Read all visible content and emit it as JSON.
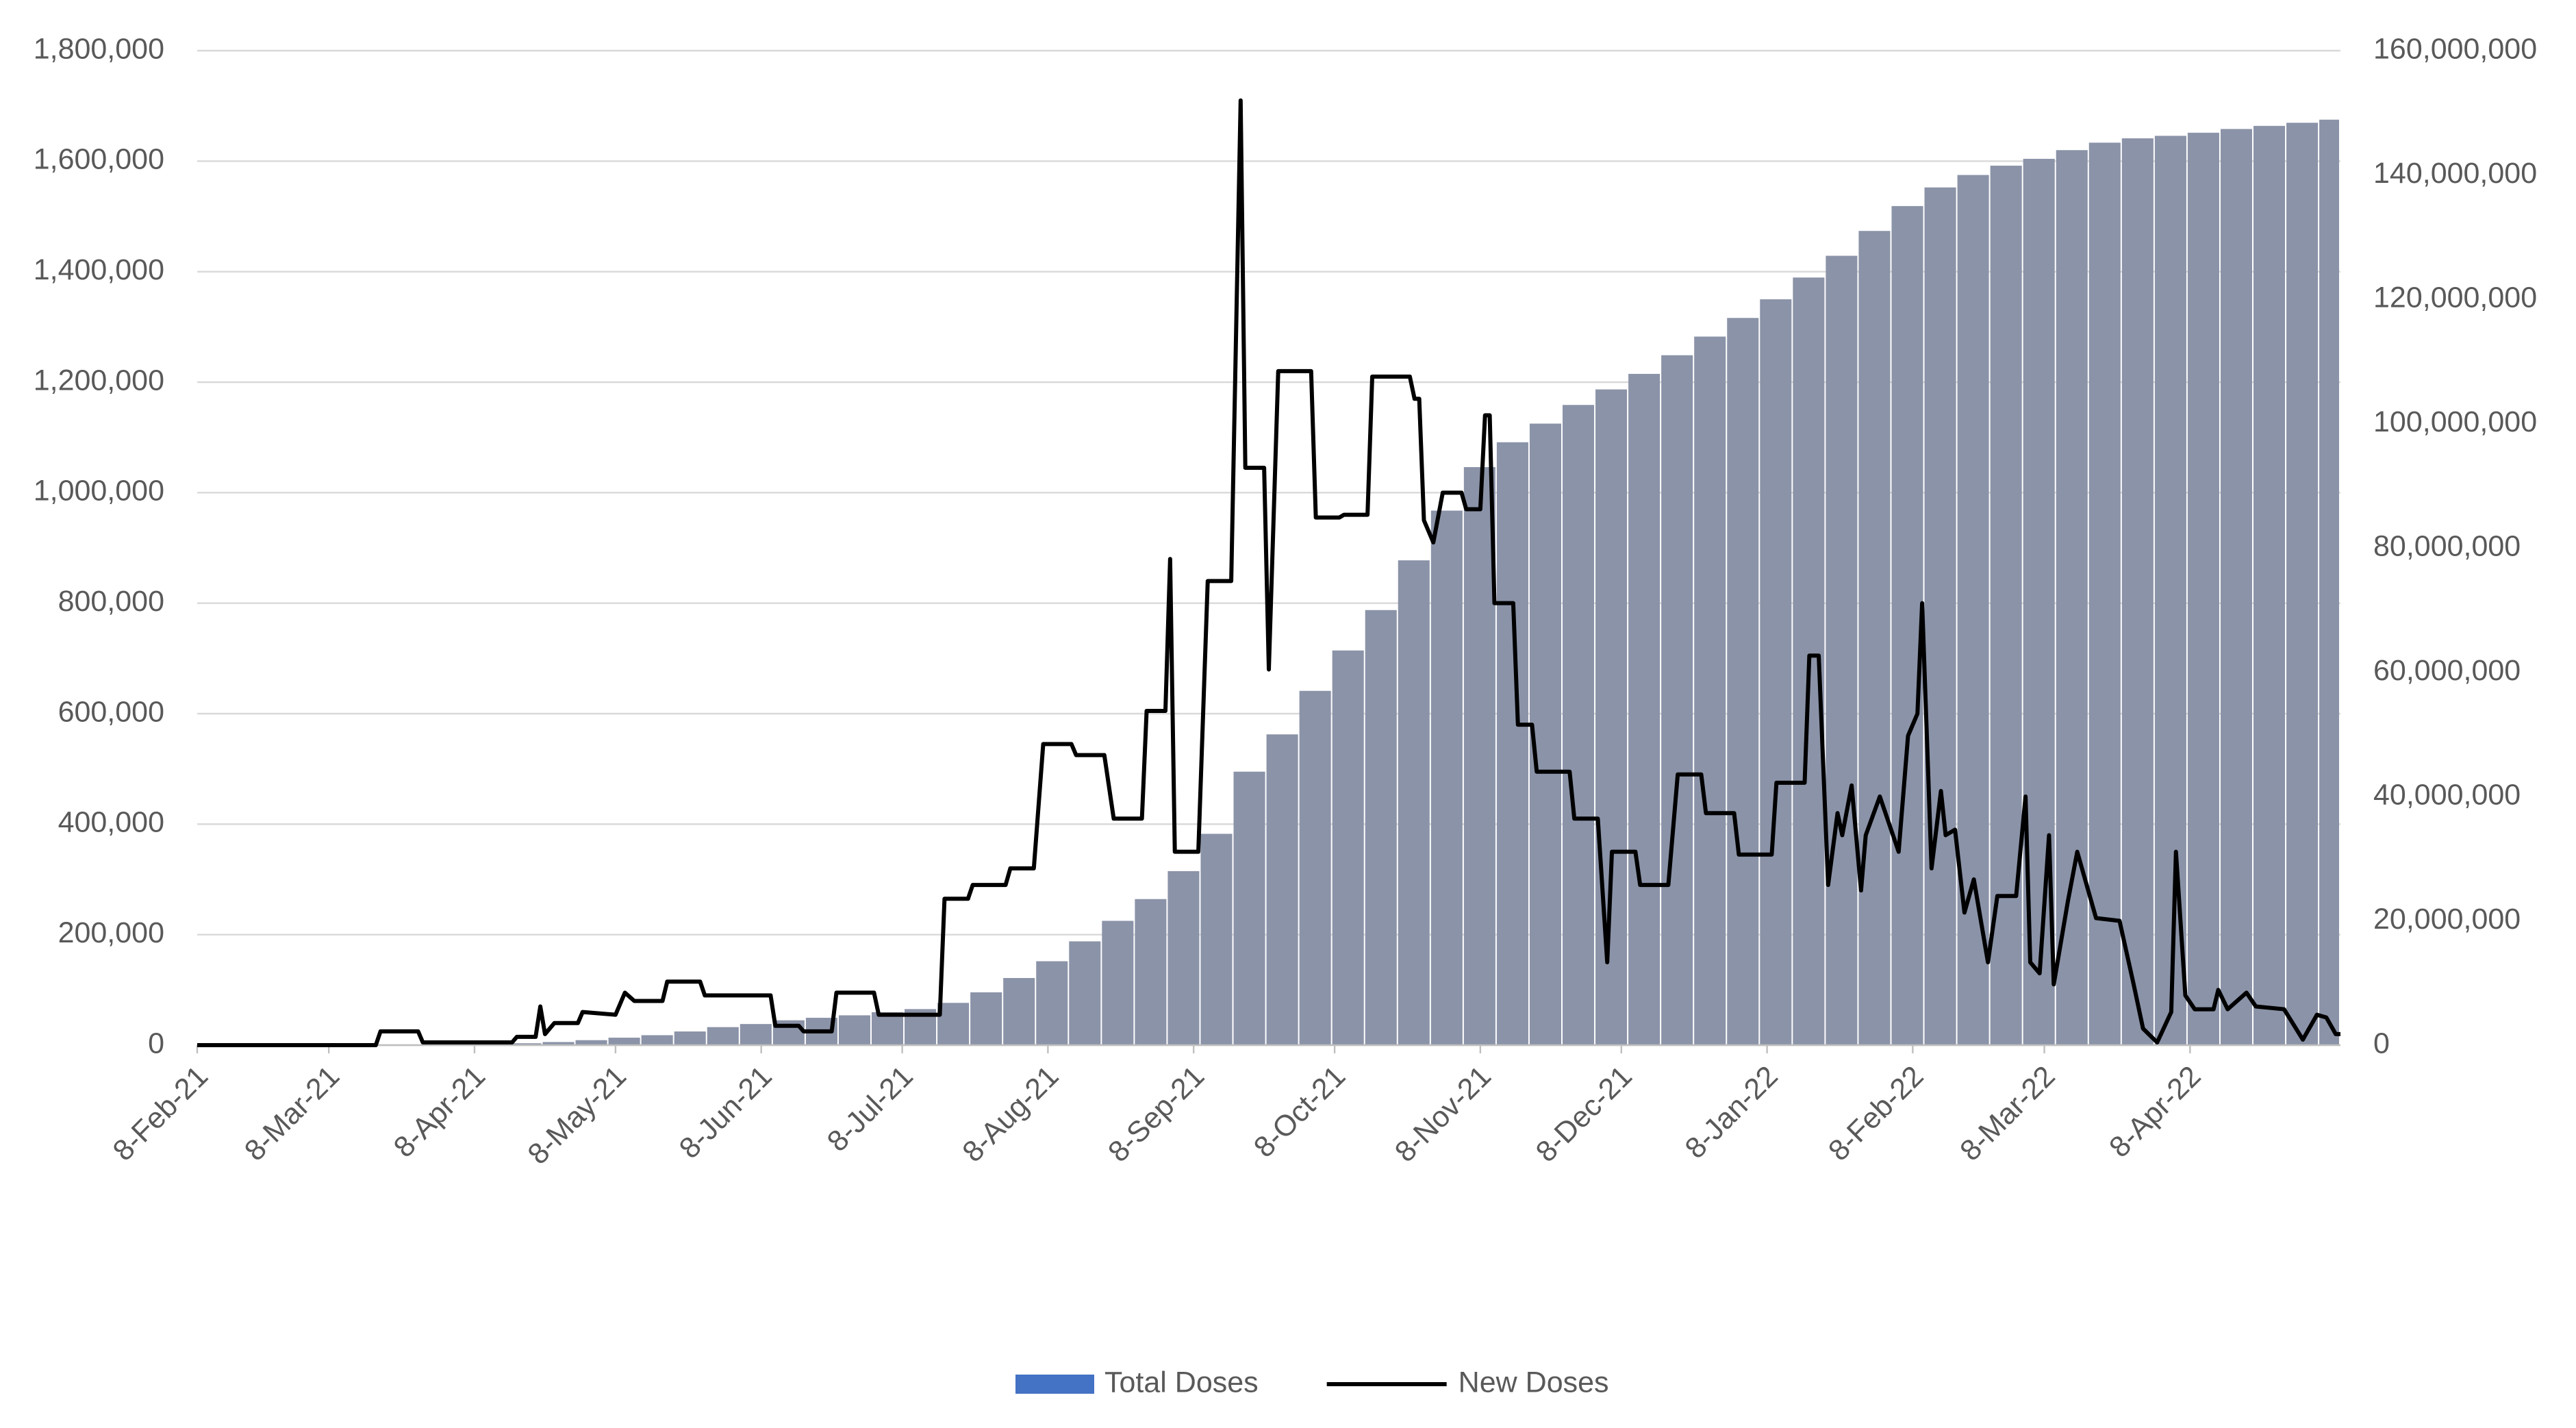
{
  "chart_data": {
    "type": "bar-line",
    "xlim": [
      "2021-02-08",
      "2022-05-10"
    ],
    "xticks": [
      {
        "value": "2021-02-08",
        "label": "8-Feb-21"
      },
      {
        "value": "2021-03-08",
        "label": "8-Mar-21"
      },
      {
        "value": "2021-04-08",
        "label": "8-Apr-21"
      },
      {
        "value": "2021-05-08",
        "label": "8-May-21"
      },
      {
        "value": "2021-06-08",
        "label": "8-Jun-21"
      },
      {
        "value": "2021-07-08",
        "label": "8-Jul-21"
      },
      {
        "value": "2021-08-08",
        "label": "8-Aug-21"
      },
      {
        "value": "2021-09-08",
        "label": "8-Sep-21"
      },
      {
        "value": "2021-10-08",
        "label": "8-Oct-21"
      },
      {
        "value": "2021-11-08",
        "label": "8-Nov-21"
      },
      {
        "value": "2021-12-08",
        "label": "8-Dec-21"
      },
      {
        "value": "2022-01-08",
        "label": "8-Jan-22"
      },
      {
        "value": "2022-02-08",
        "label": "8-Feb-22"
      },
      {
        "value": "2022-03-08",
        "label": "8-Mar-22"
      },
      {
        "value": "2022-04-08",
        "label": "8-Apr-22"
      }
    ],
    "ylim": [
      0,
      1800000
    ],
    "yticks": [
      0,
      {
        "value": 200000,
        "label": "200,000"
      },
      {
        "value": 400000,
        "label": "400,000"
      },
      {
        "value": 600000,
        "label": "600,000"
      },
      {
        "value": 800000,
        "label": "800,000"
      },
      {
        "value": 1000000,
        "label": "1,000,000"
      },
      {
        "value": 1200000,
        "label": "1,200,000"
      },
      {
        "value": 1400000,
        "label": "1,400,000"
      },
      {
        "value": 1600000,
        "label": "1,600,000"
      },
      {
        "value": 1800000,
        "label": "1,800,000"
      }
    ],
    "y2lim": [
      0,
      160000000
    ],
    "y2ticks": [
      0,
      {
        "value": 20000000,
        "label": "20,000,000"
      },
      {
        "value": 40000000,
        "label": "40,000,000"
      },
      {
        "value": 60000000,
        "label": "60,000,000"
      },
      {
        "value": 80000000,
        "label": "80,000,000"
      },
      {
        "value": 100000000,
        "label": "100,000,000"
      },
      {
        "value": 120000000,
        "label": "120,000,000"
      },
      {
        "value": 140000000,
        "label": "140,000,000"
      },
      {
        "value": 160000000,
        "label": "160,000,000"
      }
    ],
    "grid": true,
    "legend": "bottom",
    "series": [
      {
        "name": "Total Doses",
        "type": "bar",
        "axis": "y2",
        "color": "#8b93a8",
        "legend_color": "#4472c4",
        "x": [
          "2021-02-08",
          "2021-02-15",
          "2021-02-22",
          "2021-03-01",
          "2021-03-08",
          "2021-03-15",
          "2021-03-22",
          "2021-03-29",
          "2021-04-05",
          "2021-04-12",
          "2021-04-19",
          "2021-04-26",
          "2021-05-03",
          "2021-05-10",
          "2021-05-17",
          "2021-05-24",
          "2021-05-31",
          "2021-06-07",
          "2021-06-14",
          "2021-06-21",
          "2021-06-28",
          "2021-07-05",
          "2021-07-12",
          "2021-07-19",
          "2021-07-26",
          "2021-08-02",
          "2021-08-09",
          "2021-08-16",
          "2021-08-23",
          "2021-08-30",
          "2021-09-06",
          "2021-09-13",
          "2021-09-20",
          "2021-09-27",
          "2021-10-04",
          "2021-10-11",
          "2021-10-18",
          "2021-10-25",
          "2021-11-01",
          "2021-11-08",
          "2021-11-15",
          "2021-11-22",
          "2021-11-29",
          "2021-12-06",
          "2021-12-13",
          "2021-12-20",
          "2021-12-27",
          "2022-01-03",
          "2022-01-10",
          "2022-01-17",
          "2022-01-24",
          "2022-01-31",
          "2022-02-07",
          "2022-02-14",
          "2022-02-21",
          "2022-02-28",
          "2022-03-07",
          "2022-03-14",
          "2022-03-21",
          "2022-03-28",
          "2022-04-04",
          "2022-04-11",
          "2022-04-18",
          "2022-04-25",
          "2022-05-02",
          "2022-05-09"
        ],
        "values": [
          0,
          0,
          0,
          0,
          0,
          0,
          0,
          0,
          0,
          100000,
          300000,
          500000,
          800000,
          1200000,
          1600000,
          2200000,
          2900000,
          3400000,
          4000000,
          4400000,
          4800000,
          5300000,
          5800000,
          6800000,
          8500000,
          10800000,
          13500000,
          16700000,
          20000000,
          23500000,
          28000000,
          34000000,
          44000000,
          50000000,
          57000000,
          63500000,
          70000000,
          78000000,
          86000000,
          93000000,
          97000000,
          100000000,
          103000000,
          105500000,
          108000000,
          111000000,
          114000000,
          117000000,
          120000000,
          123500000,
          127000000,
          131000000,
          135000000,
          138000000,
          140000000,
          141500000,
          142600000,
          144000000,
          145200000,
          145900000,
          146300000,
          146800000,
          147400000,
          147900000,
          148400000,
          148900000
        ]
      },
      {
        "name": "New Doses",
        "type": "line",
        "color": "#000000",
        "x": [
          "2021-02-08",
          "2021-03-18",
          "2021-03-19",
          "2021-03-27",
          "2021-03-28",
          "2021-04-16",
          "2021-04-17",
          "2021-04-21",
          "2021-04-22",
          "2021-04-23",
          "2021-04-25",
          "2021-04-30",
          "2021-05-01",
          "2021-05-08",
          "2021-05-10",
          "2021-05-12",
          "2021-05-18",
          "2021-05-19",
          "2021-05-26",
          "2021-05-27",
          "2021-06-10",
          "2021-06-11",
          "2021-06-16",
          "2021-06-17",
          "2021-06-23",
          "2021-06-24",
          "2021-07-02",
          "2021-07-03",
          "2021-07-16",
          "2021-07-17",
          "2021-07-22",
          "2021-07-23",
          "2021-07-30",
          "2021-07-31",
          "2021-08-05",
          "2021-08-07",
          "2021-08-13",
          "2021-08-14",
          "2021-08-20",
          "2021-08-22",
          "2021-08-28",
          "2021-08-29",
          "2021-09-02",
          "2021-09-03",
          "2021-09-04",
          "2021-09-09",
          "2021-09-11",
          "2021-09-16",
          "2021-09-18",
          "2021-09-19",
          "2021-09-23",
          "2021-09-24",
          "2021-09-26",
          "2021-10-03",
          "2021-10-04",
          "2021-10-09",
          "2021-10-10",
          "2021-10-15",
          "2021-10-16",
          "2021-10-24",
          "2021-10-25",
          "2021-10-26",
          "2021-10-27",
          "2021-10-29",
          "2021-10-31",
          "2021-11-04",
          "2021-11-05",
          "2021-11-08",
          "2021-11-09",
          "2021-11-10",
          "2021-11-11",
          "2021-11-15",
          "2021-11-16",
          "2021-11-19",
          "2021-11-20",
          "2021-11-27",
          "2021-11-28",
          "2021-12-03",
          "2021-12-05",
          "2021-12-06",
          "2021-12-11",
          "2021-12-12",
          "2021-12-18",
          "2021-12-20",
          "2021-12-25",
          "2021-12-26",
          "2022-01-01",
          "2022-01-02",
          "2022-01-09",
          "2022-01-10",
          "2022-01-16",
          "2022-01-17",
          "2022-01-19",
          "2022-01-21",
          "2022-01-23",
          "2022-01-24",
          "2022-01-26",
          "2022-01-28",
          "2022-01-29",
          "2022-02-01",
          "2022-02-05",
          "2022-02-07",
          "2022-02-09",
          "2022-02-10",
          "2022-02-12",
          "2022-02-14",
          "2022-02-15",
          "2022-02-17",
          "2022-02-19",
          "2022-02-21",
          "2022-02-24",
          "2022-02-26",
          "2022-03-02",
          "2022-03-04",
          "2022-03-05",
          "2022-03-07",
          "2022-03-09",
          "2022-03-10",
          "2022-03-13",
          "2022-03-15",
          "2022-03-17",
          "2022-03-19",
          "2022-03-24",
          "2022-03-27",
          "2022-03-29",
          "2022-04-01",
          "2022-04-04",
          "2022-04-05",
          "2022-04-07",
          "2022-04-09",
          "2022-04-13",
          "2022-04-14",
          "2022-04-16",
          "2022-04-20",
          "2022-04-22",
          "2022-04-28",
          "2022-05-02",
          "2022-05-05",
          "2022-05-07",
          "2022-05-09",
          "2022-05-10"
        ],
        "values": [
          0,
          0,
          25000,
          25000,
          5000,
          5000,
          15000,
          15000,
          70000,
          20000,
          40000,
          40000,
          60000,
          55000,
          95000,
          80000,
          80000,
          115000,
          115000,
          90000,
          90000,
          35000,
          35000,
          25000,
          25000,
          95000,
          95000,
          55000,
          55000,
          265000,
          265000,
          290000,
          290000,
          320000,
          320000,
          545000,
          545000,
          525000,
          525000,
          410000,
          410000,
          605000,
          605000,
          880000,
          350000,
          350000,
          840000,
          840000,
          1710000,
          1045000,
          1045000,
          680000,
          1220000,
          1220000,
          955000,
          955000,
          960000,
          960000,
          1210000,
          1210000,
          1170000,
          1170000,
          950000,
          910000,
          1000000,
          1000000,
          970000,
          970000,
          1140000,
          1140000,
          800000,
          800000,
          580000,
          580000,
          495000,
          495000,
          410000,
          410000,
          150000,
          350000,
          350000,
          290000,
          290000,
          490000,
          490000,
          420000,
          420000,
          345000,
          345000,
          475000,
          475000,
          705000,
          705000,
          290000,
          420000,
          380000,
          470000,
          280000,
          380000,
          450000,
          350000,
          560000,
          600000,
          800000,
          320000,
          460000,
          380000,
          390000,
          240000,
          300000,
          150000,
          270000,
          270000,
          450000,
          150000,
          130000,
          380000,
          110000,
          260000,
          350000,
          290000,
          230000,
          225000,
          110000,
          30000,
          5000,
          60000,
          350000,
          90000,
          65000,
          65000,
          100000,
          65000,
          95000,
          70000,
          65000,
          10000,
          55000,
          50000,
          20000,
          20000
        ]
      }
    ]
  }
}
